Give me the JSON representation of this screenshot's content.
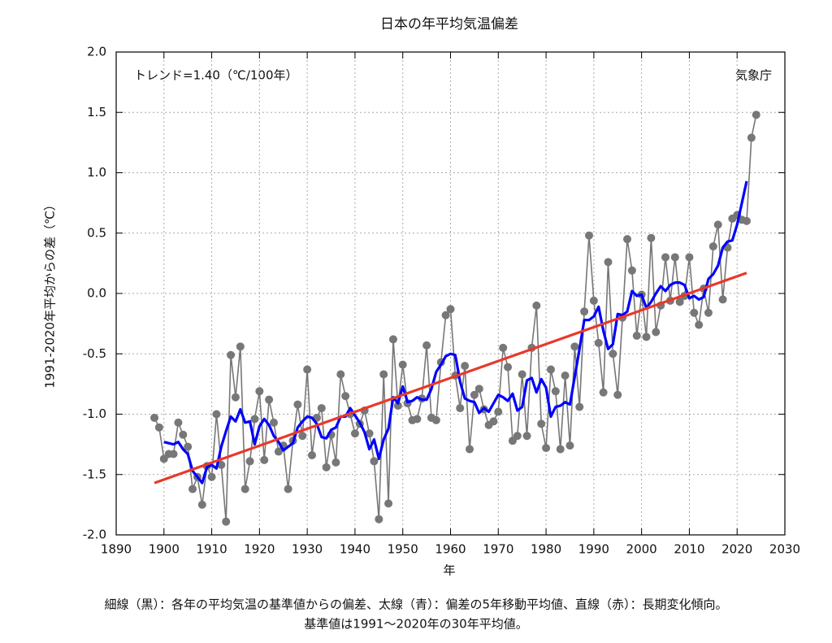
{
  "chart_data": {
    "type": "line",
    "title": "日本の年平均気温偏差",
    "annotations": [
      "トレンド=1.40（℃/100年）",
      "気象庁"
    ],
    "xlabel": "年",
    "ylabel": "1991-2020年平均からの差（℃）",
    "caption": [
      "細線（黒）：各年の平均気温の基準値からの偏差、太線（青）：偏差の5年移動平均値、直線（赤）：長期変化傾向。",
      "基準値は1991〜2020年の30年平均値。"
    ],
    "x": [
      1898,
      1899,
      1900,
      1901,
      1902,
      1903,
      1904,
      1905,
      1906,
      1907,
      1908,
      1909,
      1910,
      1911,
      1912,
      1913,
      1914,
      1915,
      1916,
      1917,
      1918,
      1919,
      1920,
      1921,
      1922,
      1923,
      1924,
      1925,
      1926,
      1927,
      1928,
      1929,
      1930,
      1931,
      1932,
      1933,
      1934,
      1935,
      1936,
      1937,
      1938,
      1939,
      1940,
      1941,
      1942,
      1943,
      1944,
      1945,
      1946,
      1947,
      1948,
      1949,
      1950,
      1951,
      1952,
      1953,
      1954,
      1955,
      1956,
      1957,
      1958,
      1959,
      1960,
      1961,
      1962,
      1963,
      1964,
      1965,
      1966,
      1967,
      1968,
      1969,
      1970,
      1971,
      1972,
      1973,
      1974,
      1975,
      1976,
      1977,
      1978,
      1979,
      1980,
      1981,
      1982,
      1983,
      1984,
      1985,
      1986,
      1987,
      1988,
      1989,
      1990,
      1991,
      1992,
      1993,
      1994,
      1995,
      1996,
      1997,
      1998,
      1999,
      2000,
      2001,
      2002,
      2003,
      2004,
      2005,
      2006,
      2007,
      2008,
      2009,
      2010,
      2011,
      2012,
      2013,
      2014,
      2015,
      2016,
      2017,
      2018,
      2019,
      2020,
      2021,
      2022,
      2023,
      2024
    ],
    "series": [
      {
        "color": "#777777",
        "markers": true,
        "values": [
          -1.03,
          -1.11,
          -1.37,
          -1.33,
          -1.33,
          -1.07,
          -1.17,
          -1.27,
          -1.62,
          -1.52,
          -1.75,
          -1.43,
          -1.52,
          -1.0,
          -1.42,
          -1.89,
          -0.51,
          -0.86,
          -0.44,
          -1.62,
          -1.39,
          -1.04,
          -0.81,
          -1.38,
          -0.88,
          -1.07,
          -1.31,
          -1.26,
          -1.62,
          -1.22,
          -0.92,
          -1.18,
          -0.63,
          -1.34,
          -1.03,
          -0.95,
          -1.44,
          -1.17,
          -1.4,
          -0.67,
          -0.85,
          -1.0,
          -1.16,
          -1.08,
          -0.97,
          -1.16,
          -1.39,
          -1.87,
          -0.67,
          -1.74,
          -0.38,
          -0.93,
          -0.59,
          -0.91,
          -1.05,
          -1.04,
          -0.87,
          -0.43,
          -1.03,
          -1.05,
          -0.57,
          -0.18,
          -0.13,
          -0.68,
          -0.95,
          -0.6,
          -1.29,
          -0.84,
          -0.79,
          -0.96,
          -1.09,
          -1.06,
          -0.98,
          -0.45,
          -0.61,
          -1.22,
          -1.18,
          -0.67,
          -1.18,
          -0.45,
          -0.1,
          -1.08,
          -1.28,
          -0.63,
          -0.81,
          -1.29,
          -0.68,
          -1.26,
          -0.44,
          -0.94,
          -0.15,
          0.48,
          -0.06,
          -0.41,
          -0.82,
          0.26,
          -0.5,
          -0.84,
          -0.2,
          0.45,
          0.19,
          -0.35,
          -0.01,
          -0.36,
          0.46,
          -0.32,
          -0.1,
          0.3,
          -0.06,
          0.3,
          -0.07,
          -0.02,
          0.3,
          -0.16,
          -0.26,
          0.04,
          -0.16,
          0.39,
          0.57,
          -0.05,
          0.38,
          0.62,
          0.65,
          0.61,
          0.6,
          1.29,
          1.48
        ]
      },
      {
        "color": "#0000ff",
        "markers": false,
        "values": [
          null,
          null,
          -1.23,
          -1.24,
          -1.25,
          -1.23,
          -1.29,
          -1.33,
          -1.47,
          -1.52,
          -1.57,
          -1.44,
          -1.42,
          -1.45,
          -1.27,
          -1.14,
          -1.02,
          -1.06,
          -0.96,
          -1.07,
          -1.06,
          -1.25,
          -1.1,
          -1.04,
          -1.09,
          -1.18,
          -1.23,
          -1.3,
          -1.27,
          -1.24,
          -1.11,
          -1.06,
          -1.02,
          -1.03,
          -1.08,
          -1.19,
          -1.2,
          -1.13,
          -1.11,
          -1.02,
          -1.02,
          -0.95,
          -1.01,
          -1.07,
          -1.15,
          -1.29,
          -1.21,
          -1.37,
          -1.21,
          -1.12,
          -0.86,
          -0.91,
          -0.77,
          -0.9,
          -0.89,
          -0.86,
          -0.88,
          -0.88,
          -0.79,
          -0.65,
          -0.59,
          -0.52,
          -0.5,
          -0.51,
          -0.73,
          -0.87,
          -0.89,
          -0.9,
          -0.99,
          -0.95,
          -0.98,
          -0.91,
          -0.84,
          -0.86,
          -0.89,
          -0.83,
          -0.97,
          -0.94,
          -0.72,
          -0.7,
          -0.82,
          -0.71,
          -0.78,
          -1.02,
          -0.94,
          -0.93,
          -0.9,
          -0.92,
          -0.69,
          -0.46,
          -0.22,
          -0.22,
          -0.19,
          -0.11,
          -0.31,
          -0.46,
          -0.42,
          -0.17,
          -0.18,
          -0.15,
          0.02,
          -0.02,
          -0.01,
          -0.12,
          -0.07,
          0.0,
          0.06,
          0.02,
          0.07,
          0.09,
          0.09,
          0.07,
          -0.04,
          -0.02,
          -0.05,
          -0.03,
          0.12,
          0.16,
          0.23,
          0.38,
          0.43,
          0.44,
          0.57,
          0.75,
          0.93,
          null,
          null
        ]
      },
      {
        "color": "#e8392a",
        "markers": false,
        "x": [
          1898,
          2022
        ],
        "values": [
          -1.57,
          0.17
        ]
      }
    ],
    "xlim": [
      1890,
      2030
    ],
    "xticks": [
      1890,
      1900,
      1910,
      1920,
      1930,
      1940,
      1950,
      1960,
      1970,
      1980,
      1990,
      2000,
      2010,
      2020,
      2030
    ],
    "ylim": [
      -2,
      2
    ],
    "yticks": [
      {
        "value": -2,
        "label": "-2.0"
      },
      -1.5,
      {
        "value": -1,
        "label": "-1.0"
      },
      -0.5,
      {
        "value": 0,
        "label": "0.0"
      },
      0.5,
      {
        "value": 1,
        "label": "1.0"
      },
      1.5,
      {
        "value": 2,
        "label": "2.0"
      }
    ],
    "grid": true
  }
}
